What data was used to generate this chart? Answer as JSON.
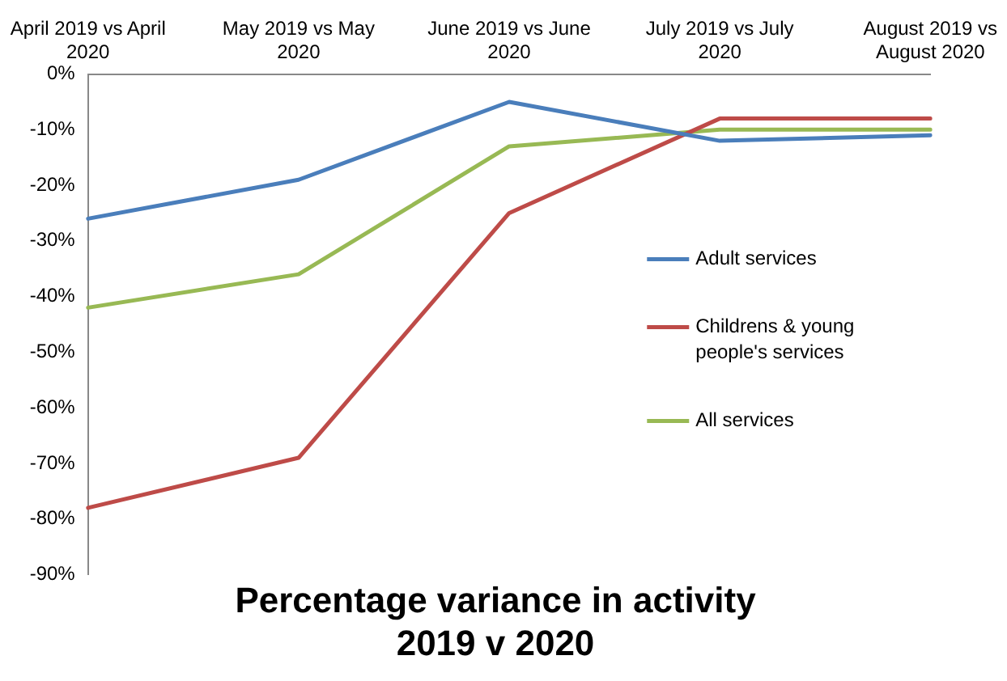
{
  "chart_data": {
    "type": "line",
    "title": "Percentage variance in activity 2019 v 2020",
    "categories": [
      "April 2019 vs April 2020",
      "May 2019 vs May 2020",
      "June 2019 vs June 2020",
      "July 2019 vs July 2020",
      "August 2019 vs August 2020"
    ],
    "series": [
      {
        "name": "Adult services",
        "color": "#4a7ebb",
        "values": [
          -26,
          -19,
          -5,
          -12,
          -11
        ]
      },
      {
        "name": "Childrens & young people's services",
        "color": "#be4b48",
        "values": [
          -78,
          -69,
          -25,
          -8,
          -8
        ]
      },
      {
        "name": "All services",
        "color": "#98b954",
        "values": [
          -42,
          -36,
          -13,
          -10,
          -10
        ]
      }
    ],
    "ylim": [
      -90,
      0
    ],
    "yticks": [
      {
        "value": 0,
        "label": "0%"
      },
      {
        "value": -10,
        "label": "-10%"
      },
      {
        "value": -20,
        "label": "-20%"
      },
      {
        "value": -30,
        "label": "-30%"
      },
      {
        "value": -40,
        "label": "-40%"
      },
      {
        "value": -50,
        "label": "-50%"
      },
      {
        "value": -60,
        "label": "-60%"
      },
      {
        "value": -70,
        "label": "-70%"
      },
      {
        "value": -80,
        "label": "-80%"
      },
      {
        "value": -90,
        "label": "-90%"
      }
    ],
    "grid": false,
    "legend": "right",
    "marker": "none",
    "line_style": "solid"
  }
}
